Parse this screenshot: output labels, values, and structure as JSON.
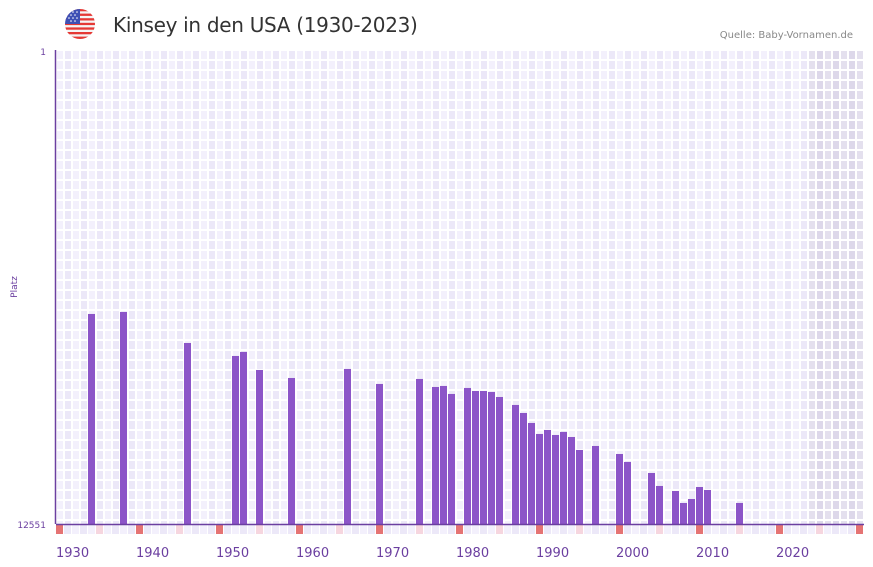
{
  "header": {
    "flag_icon": "us-flag-icon",
    "title": "Kinsey in den USA (1930-2023)",
    "source": "Quelle: Baby-Vornamen.de"
  },
  "colors": {
    "bar": "#8c55c8",
    "axis": "#6b3fa0",
    "cell_a": "#f3f0fc",
    "cell_b": "#ece8f8",
    "cell_future_a": "#e4e0ee",
    "cell_future_b": "#ddd8ea",
    "decade_marker": "#e57373",
    "half_decade_marker": "#f6d6df",
    "tick_label": "#6b3fa0"
  },
  "chart_data": {
    "type": "bar",
    "title": "Kinsey in den USA (1930-2023)",
    "xlabel": "",
    "ylabel": "Platz",
    "y_axis_inverted": true,
    "ylim": [
      1,
      12551
    ],
    "y_tick_labels": [
      "1",
      "12551"
    ],
    "x_range": [
      1930,
      2030
    ],
    "x_tick_labels": [
      "1930",
      "1940",
      "1950",
      "1960",
      "1970",
      "1980",
      "1990",
      "2000",
      "2010",
      "2020"
    ],
    "future_shaded_from": 2024,
    "grid": true,
    "legend": "none",
    "years": [
      1934,
      1938,
      1946,
      1952,
      1953,
      1955,
      1959,
      1966,
      1970,
      1975,
      1977,
      1978,
      1979,
      1981,
      1982,
      1983,
      1984,
      1985,
      1987,
      1988,
      1989,
      1990,
      1991,
      1992,
      1993,
      1994,
      1995,
      1997,
      2000,
      2001,
      2004,
      2005,
      2007,
      2008,
      2009,
      2010,
      2011,
      2015
    ],
    "ranks": [
      6990,
      6937,
      7758,
      8102,
      7996,
      8473,
      8685,
      8446,
      8843,
      8711,
      8923,
      8896,
      9108,
      8949,
      9029,
      9029,
      9055,
      9188,
      9399,
      9611,
      9876,
      10167,
      10061,
      10194,
      10114,
      10247,
      10591,
      10485,
      10697,
      10909,
      11200,
      11544,
      11677,
      11994,
      11889,
      11571,
      11650,
      11994
    ]
  }
}
